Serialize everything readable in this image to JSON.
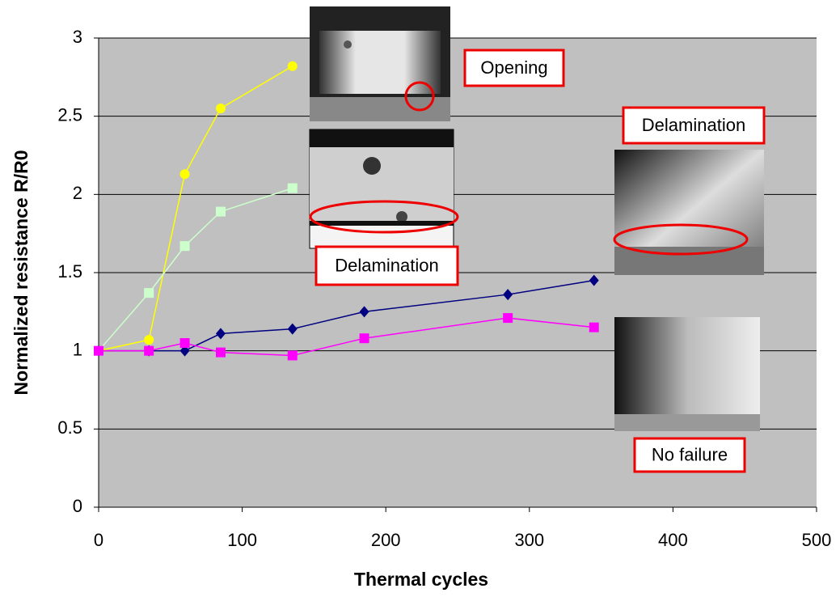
{
  "chart_data": {
    "type": "line",
    "x_label": "Thermal cycles",
    "y_label": "Normalized resistance R/R0",
    "xlim": [
      0,
      500
    ],
    "xticks": [
      0,
      100,
      200,
      300,
      400,
      500
    ],
    "ylim": [
      0,
      3
    ],
    "yticks": [
      0,
      0.5,
      1,
      1.5,
      2,
      2.5,
      3
    ],
    "grid": true,
    "plot_background": "#c0c0c0",
    "series": [
      {
        "color": "#ffff00",
        "marker": "circle",
        "x": [
          0,
          35,
          60,
          85,
          135
        ],
        "values": [
          1,
          1.07,
          2.13,
          2.55,
          2.82
        ]
      },
      {
        "color": "#ccffcc",
        "marker": "square",
        "x": [
          0,
          35,
          60,
          85,
          135
        ],
        "values": [
          1,
          1.37,
          1.67,
          1.89,
          2.04
        ]
      },
      {
        "color": "#000080",
        "marker": "diamond",
        "x": [
          0,
          35,
          60,
          85,
          135,
          185,
          285,
          345
        ],
        "values": [
          1,
          1,
          1,
          1.11,
          1.14,
          1.25,
          1.36,
          1.45
        ]
      },
      {
        "color": "#ff00ff",
        "marker": "square",
        "x": [
          0,
          35,
          60,
          85,
          135,
          185,
          285,
          345
        ],
        "values": [
          1,
          1,
          1.05,
          0.99,
          0.97,
          1.08,
          1.21,
          1.15
        ]
      }
    ],
    "annotations": [
      "Opening",
      "Delamination",
      "Delamination",
      "No failure"
    ]
  }
}
